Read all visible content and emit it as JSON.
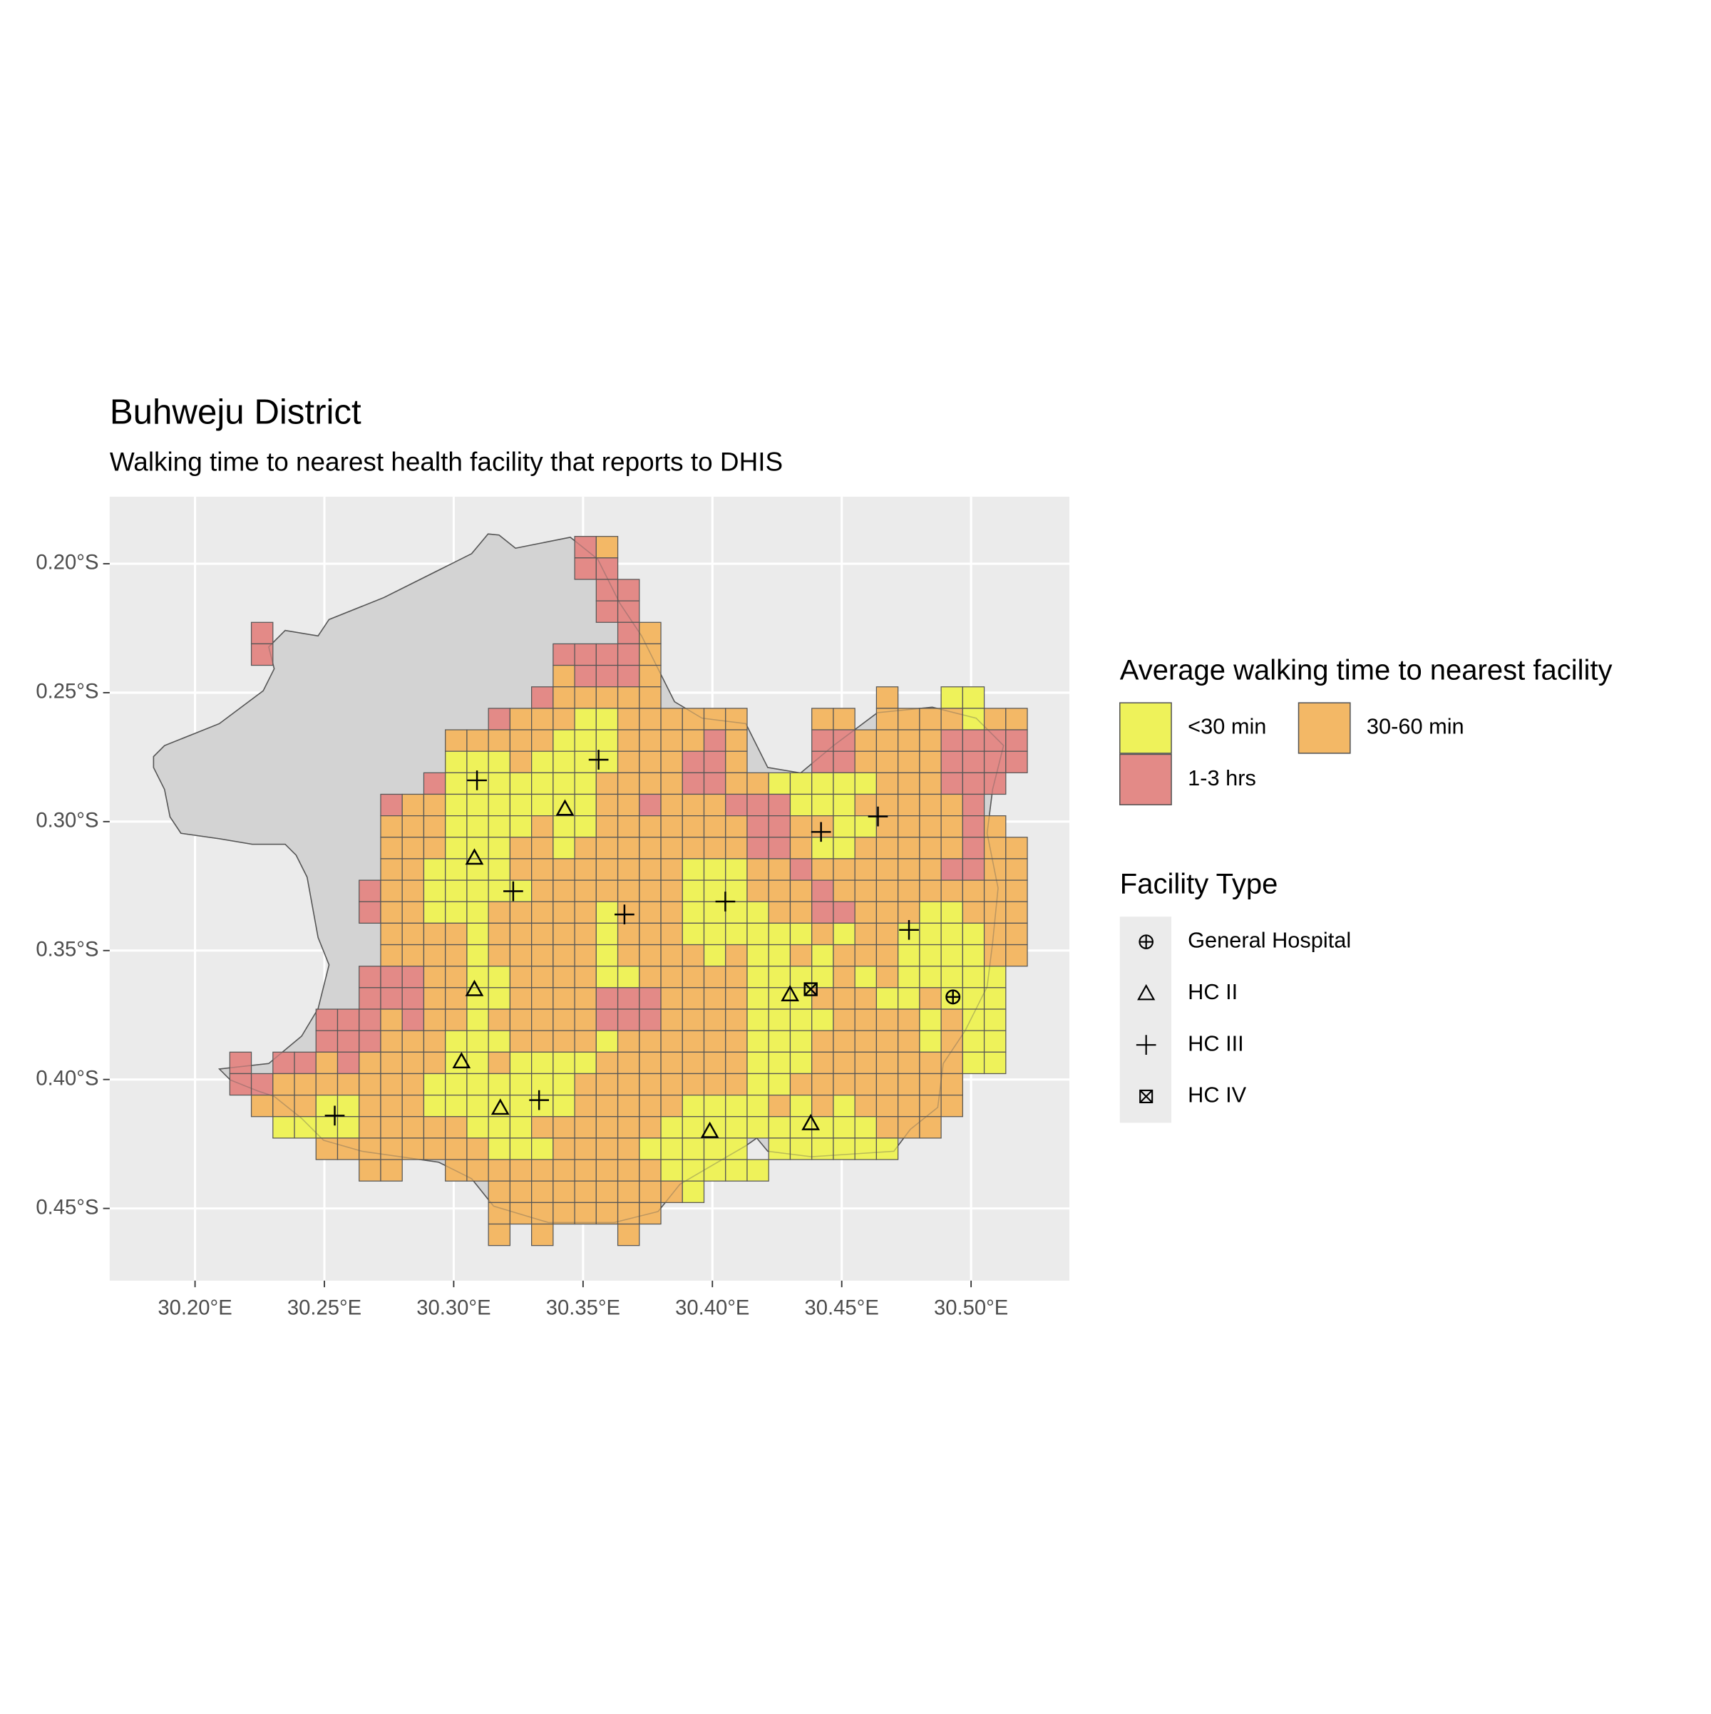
{
  "chart_data": {
    "type": "grid-map",
    "title": "Buhweju District",
    "subtitle": "Walking time to nearest health facility that reports to DHIS",
    "xlim": [
      30.167,
      30.538
    ],
    "ylim": [
      -0.478,
      -0.174
    ],
    "xticks": [
      {
        "value": 30.2,
        "label": "30.20°E"
      },
      {
        "value": 30.25,
        "label": "30.25°E"
      },
      {
        "value": 30.3,
        "label": "30.30°E"
      },
      {
        "value": 30.35,
        "label": "30.35°E"
      },
      {
        "value": 30.4,
        "label": "30.40°E"
      },
      {
        "value": 30.45,
        "label": "30.45°E"
      },
      {
        "value": 30.5,
        "label": "30.50°E"
      }
    ],
    "yticks": [
      {
        "value": -0.2,
        "label": "0.20°S"
      },
      {
        "value": -0.25,
        "label": "0.25°S"
      },
      {
        "value": -0.3,
        "label": "0.30°S"
      },
      {
        "value": -0.35,
        "label": "0.35°S"
      },
      {
        "value": -0.4,
        "label": "0.40°S"
      },
      {
        "value": -0.45,
        "label": "0.45°S"
      }
    ],
    "grid": [
      ".................21...................",
      ".................22...................",
      "..................22..................",
      "..................22..................",
      "..2................21.................",
      "..2.............22221.................",
      "................12221.................",
      "...............211111..........1..00..",
      ".............211100111111...11.1111011",
      "...........11111000111121...2211112222",
      "...........00010000111221...2211112222",
      "..........200000001111221100000111222.",
      "........2110000000112111222000111112..",
      "........11100001001111111221100111121.",
      "........111000110111111112210011111211",
      "........110000111111110001121111112211",
      ".......2110000011111110001112111111111",
      ".......2110001111101110000112211100111",
      "........111101111101110000001011000011",
      "........111101111101111010010111000011",
      ".......222110011110011111000010100000.",
      ".......222110011112221111000111001000.",
      ".....22212110111112221111000011110100.",
      ".....22211100011110111111000111110100.",
      ".2.2212111100100001111111000111111100.",
      ".2211111110000000111111110011111111...",
      "..111001110000000111110000101011111...",
      "...0000111110001111110000000000111....",
      ".....11111111000111100000.000000......",
      ".......11..111111111100000............",
      ".............1111111110...............",
      ".............11111111.................",
      ".............1.1...1.................."
    ],
    "fill_legend_title": "Average walking time to nearest facility",
    "classes": [
      {
        "name": "<30 min",
        "color": "#eef25a"
      },
      {
        "name": "30-60 min",
        "color": "#f3b866"
      },
      {
        "name": "1-3 hrs",
        "color": "#e38a87"
      }
    ],
    "grid_origin": [
      30.2051,
      -0.1894
    ],
    "cell_size": 0.008333,
    "shape_legend_title": "Facility Type",
    "series": [
      {
        "name": "General Hospital",
        "shape": "circle-plus",
        "x": [
          30.493
        ],
        "y": [
          -0.368
        ]
      },
      {
        "name": "HC II",
        "shape": "triangle",
        "x": [
          30.308,
          30.343,
          30.308,
          30.303,
          30.318,
          30.399,
          30.43,
          30.438
        ],
        "y": [
          -0.314,
          -0.295,
          -0.365,
          -0.393,
          -0.411,
          -0.42,
          -0.367,
          -0.417
        ]
      },
      {
        "name": "HC III",
        "shape": "plus",
        "x": [
          30.356,
          30.309,
          30.323,
          30.366,
          30.405,
          30.442,
          30.464,
          30.476,
          30.254,
          30.333
        ],
        "y": [
          -0.276,
          -0.284,
          -0.327,
          -0.336,
          -0.331,
          -0.304,
          -0.298,
          -0.342,
          -0.414,
          -0.408
        ]
      },
      {
        "name": "HC IV",
        "shape": "square-x",
        "x": [
          30.438
        ],
        "y": [
          -0.365
        ]
      }
    ]
  }
}
